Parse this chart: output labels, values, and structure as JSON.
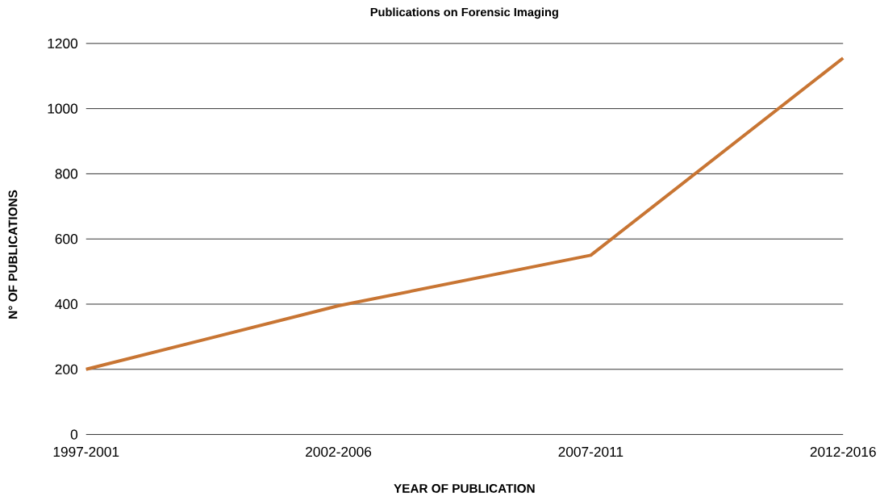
{
  "chart_data": {
    "type": "line",
    "title": "Publications on Forensic Imaging",
    "xlabel": "YEAR OF PUBLICATION",
    "ylabel": "N° OF PUBLICATIONS",
    "categories": [
      "1997-2001",
      "2002-2006",
      "2007-2011",
      "2012-2016"
    ],
    "values": [
      200,
      395,
      550,
      1155
    ],
    "color": "#c87533",
    "ylim": [
      0,
      1200
    ],
    "yticks": [
      0,
      200,
      400,
      600,
      800,
      1000,
      1200
    ],
    "grid": "y",
    "marker": "none",
    "line_style": "solid"
  }
}
